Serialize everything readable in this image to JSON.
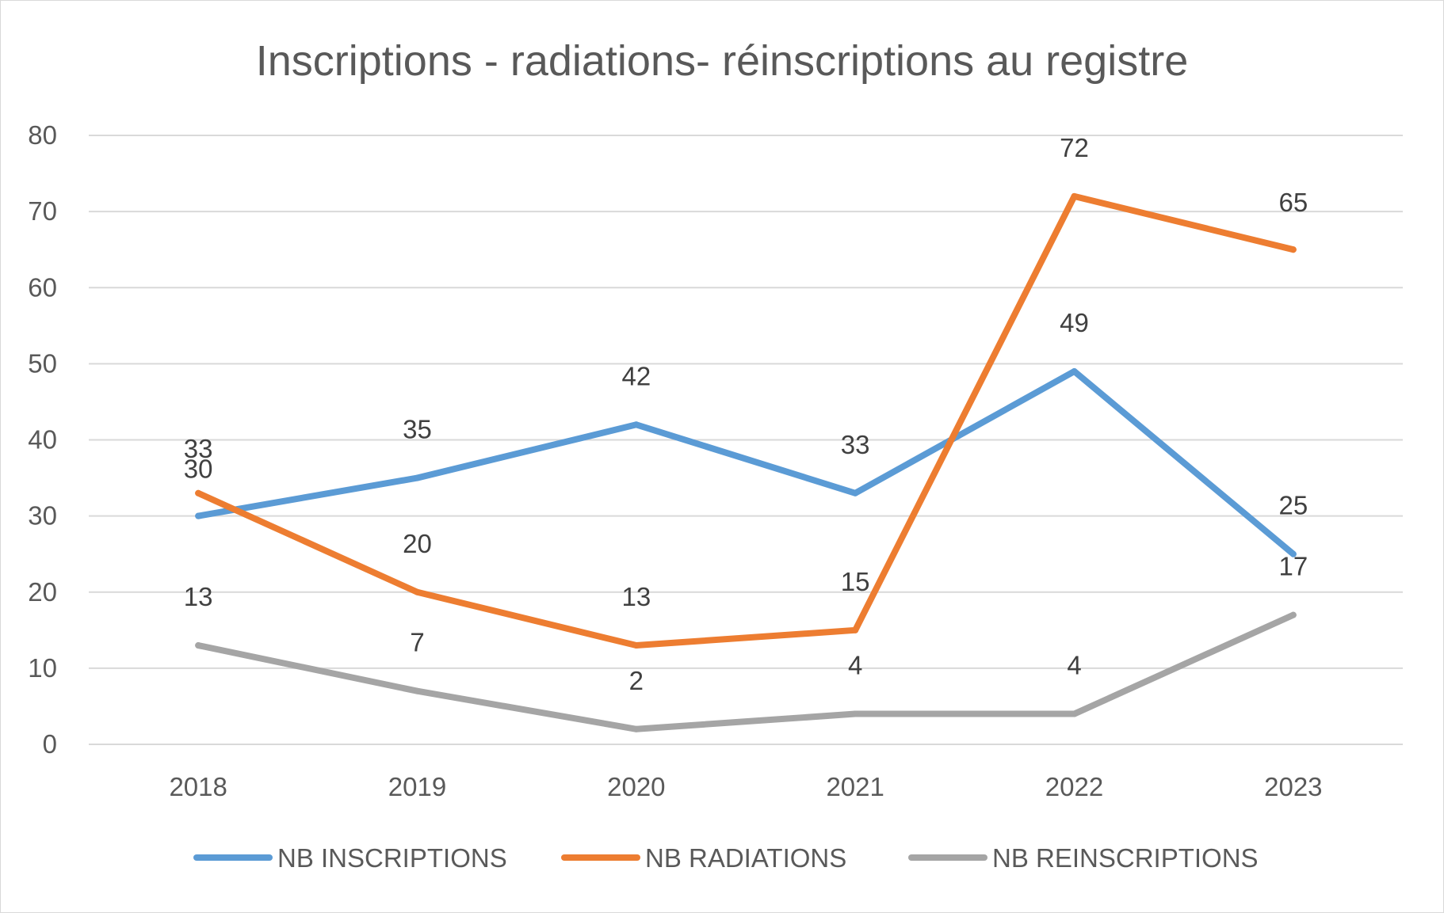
{
  "chart_data": {
    "type": "line",
    "title": "Inscriptions - radiations- réinscriptions au registre",
    "xlabel": "",
    "ylabel": "",
    "categories": [
      "2018",
      "2019",
      "2020",
      "2021",
      "2022",
      "2023"
    ],
    "ylim": [
      0,
      80
    ],
    "yticks": [
      "0",
      "10",
      "20",
      "30",
      "40",
      "50",
      "60",
      "70",
      "80"
    ],
    "grid": true,
    "legend_position": "bottom",
    "series": [
      {
        "name": "NB INSCRIPTIONS",
        "color": "#5B9BD5",
        "values": [
          30,
          35,
          42,
          33,
          49,
          25
        ]
      },
      {
        "name": "NB RADIATIONS",
        "color": "#ED7D31",
        "values": [
          33,
          20,
          13,
          15,
          72,
          65
        ]
      },
      {
        "name": "NB REINSCRIPTIONS",
        "color": "#A5A5A5",
        "values": [
          13,
          7,
          2,
          4,
          4,
          17
        ]
      }
    ]
  }
}
